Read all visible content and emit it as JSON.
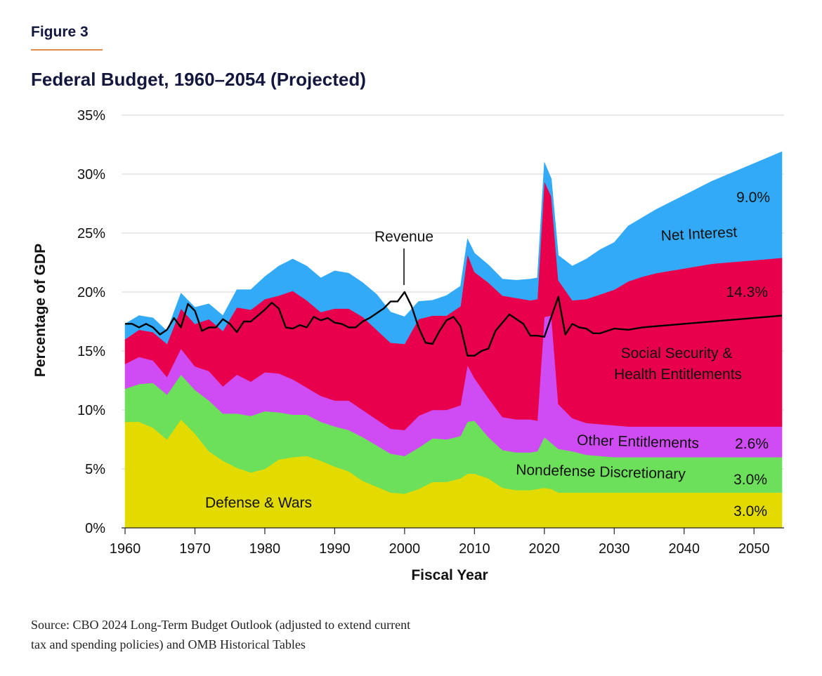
{
  "figure_label": "Figure 3",
  "title": "Federal Budget, 1960–2054 (Projected)",
  "source_line1": "Source: CBO 2024 Long-Term Budget Outlook (adjusted to extend current",
  "source_line2": "tax and spending policies) and OMB Historical Tables",
  "colors": {
    "defense": "#e3da00",
    "nondefense": "#6ce05a",
    "other_entitlements": "#cf4cf5",
    "social_security_health": "#e8004c",
    "net_interest": "#33aaf8",
    "revenue": "#000000",
    "accent_rule": "#e08a4a",
    "title": "#13173d"
  },
  "chart_data": {
    "type": "area",
    "stacked": true,
    "xlabel": "Fiscal Year",
    "ylabel": "Percentage of GDP",
    "xlim": [
      1960,
      2054
    ],
    "ylim": [
      0,
      35
    ],
    "x_ticks": [
      1960,
      1970,
      1980,
      1990,
      2000,
      2010,
      2020,
      2030,
      2040,
      2050
    ],
    "y_ticks": [
      0,
      5,
      10,
      15,
      20,
      25,
      30,
      35
    ],
    "y_tick_labels": [
      "0%",
      "5%",
      "10%",
      "15%",
      "20%",
      "25%",
      "30%",
      "35%"
    ],
    "grid": "horizontal",
    "years": [
      1960,
      1962,
      1964,
      1966,
      1968,
      1970,
      1972,
      1974,
      1976,
      1978,
      1980,
      1982,
      1984,
      1986,
      1988,
      1990,
      1992,
      1994,
      1996,
      1998,
      2000,
      2002,
      2004,
      2006,
      2008,
      2009,
      2010,
      2012,
      2014,
      2016,
      2018,
      2019,
      2020,
      2021,
      2022,
      2024,
      2026,
      2028,
      2030,
      2032,
      2034,
      2036,
      2038,
      2040,
      2042,
      2044,
      2046,
      2048,
      2050,
      2052,
      2054
    ],
    "series": [
      {
        "name": "Defense & Wars",
        "color_key": "defense",
        "values": [
          9.0,
          9.0,
          8.5,
          7.5,
          9.2,
          8.0,
          6.5,
          5.7,
          5.1,
          4.7,
          5.0,
          5.8,
          6.0,
          6.1,
          5.7,
          5.2,
          4.8,
          4.0,
          3.5,
          3.0,
          2.9,
          3.3,
          3.9,
          3.9,
          4.2,
          4.6,
          4.6,
          4.2,
          3.4,
          3.2,
          3.2,
          3.3,
          3.4,
          3.3,
          3.0,
          3.0,
          3.0,
          3.0,
          3.0,
          3.0,
          3.0,
          3.0,
          3.0,
          3.0,
          3.0,
          3.0,
          3.0,
          3.0,
          3.0,
          3.0,
          3.0
        ]
      },
      {
        "name": "Nondefense Discretionary",
        "color_key": "nondefense",
        "values": [
          2.8,
          3.2,
          3.8,
          3.8,
          3.8,
          3.7,
          4.3,
          4.0,
          4.6,
          4.8,
          4.9,
          4.0,
          3.6,
          3.5,
          3.3,
          3.4,
          3.5,
          3.7,
          3.5,
          3.3,
          3.2,
          3.5,
          3.7,
          3.6,
          3.6,
          4.4,
          4.5,
          3.5,
          3.2,
          3.2,
          3.2,
          3.2,
          4.3,
          3.9,
          3.7,
          3.5,
          3.2,
          3.1,
          3.0,
          3.0,
          3.0,
          3.0,
          3.0,
          3.0,
          3.0,
          3.0,
          3.0,
          3.0,
          3.0,
          3.0,
          3.0
        ]
      },
      {
        "name": "Other Entitlements",
        "color_key": "other_entitlements",
        "values": [
          2.1,
          2.3,
          1.9,
          1.5,
          2.2,
          2.0,
          2.5,
          2.3,
          3.3,
          2.9,
          3.3,
          3.3,
          3.0,
          2.3,
          2.2,
          2.2,
          2.5,
          2.3,
          2.2,
          2.1,
          2.2,
          2.7,
          2.4,
          2.5,
          2.6,
          4.8,
          3.6,
          3.3,
          2.8,
          2.8,
          2.8,
          2.6,
          10.2,
          10.8,
          3.8,
          2.8,
          2.7,
          2.7,
          2.7,
          2.6,
          2.6,
          2.6,
          2.6,
          2.6,
          2.6,
          2.6,
          2.6,
          2.6,
          2.6,
          2.6,
          2.6
        ]
      },
      {
        "name": "Social Security & Health Entitlements",
        "color_key": "social_security_health",
        "values": [
          2.1,
          2.3,
          2.4,
          2.8,
          3.4,
          3.6,
          4.4,
          4.7,
          5.7,
          6.1,
          6.2,
          6.6,
          7.5,
          7.4,
          7.1,
          7.8,
          7.8,
          7.9,
          7.6,
          7.3,
          7.3,
          8.2,
          8.0,
          8.0,
          8.4,
          9.4,
          9.0,
          9.8,
          10.3,
          10.3,
          10.1,
          10.3,
          11.5,
          10.1,
          10.5,
          10.0,
          10.5,
          11.0,
          11.5,
          12.3,
          12.7,
          13.0,
          13.2,
          13.4,
          13.6,
          13.8,
          13.9,
          14.0,
          14.1,
          14.2,
          14.3
        ]
      },
      {
        "name": "Net Interest",
        "color_key": "net_interest",
        "values": [
          1.3,
          1.2,
          1.2,
          1.1,
          1.3,
          1.4,
          1.3,
          1.3,
          1.5,
          1.7,
          1.9,
          2.5,
          2.7,
          2.9,
          2.9,
          3.2,
          3.0,
          2.9,
          3.0,
          2.6,
          2.3,
          1.5,
          1.3,
          1.7,
          1.7,
          1.3,
          1.6,
          1.5,
          1.4,
          1.5,
          1.8,
          1.8,
          1.6,
          1.5,
          2.1,
          2.9,
          3.4,
          3.8,
          4.0,
          4.7,
          5.0,
          5.4,
          5.8,
          6.2,
          6.6,
          7.0,
          7.4,
          7.8,
          8.2,
          8.6,
          9.0
        ]
      }
    ],
    "revenue_line": {
      "name": "Revenue",
      "years": [
        1960,
        1961,
        1962,
        1963,
        1964,
        1965,
        1966,
        1967,
        1968,
        1969,
        1970,
        1971,
        1972,
        1973,
        1974,
        1975,
        1976,
        1977,
        1978,
        1979,
        1980,
        1981,
        1982,
        1983,
        1984,
        1985,
        1986,
        1987,
        1988,
        1989,
        1990,
        1991,
        1992,
        1993,
        1994,
        1995,
        1996,
        1997,
        1998,
        1999,
        2000,
        2001,
        2002,
        2003,
        2004,
        2005,
        2006,
        2007,
        2008,
        2009,
        2010,
        2011,
        2012,
        2013,
        2014,
        2015,
        2016,
        2017,
        2018,
        2019,
        2020,
        2021,
        2022,
        2023,
        2024,
        2025,
        2026,
        2027,
        2028,
        2030,
        2032,
        2034,
        2036,
        2038,
        2040,
        2042,
        2044,
        2046,
        2048,
        2050,
        2052,
        2054
      ],
      "values": [
        17.3,
        17.3,
        17.0,
        17.3,
        17.0,
        16.4,
        16.8,
        17.8,
        17.0,
        19.0,
        18.4,
        16.7,
        17.0,
        17.0,
        17.7,
        17.3,
        16.6,
        17.5,
        17.5,
        18.0,
        18.5,
        19.1,
        18.6,
        17.0,
        16.9,
        17.2,
        17.0,
        17.9,
        17.6,
        17.8,
        17.4,
        17.3,
        17.0,
        17.0,
        17.5,
        17.8,
        18.2,
        18.6,
        19.2,
        19.2,
        20.0,
        18.8,
        17.0,
        15.7,
        15.6,
        16.7,
        17.6,
        17.9,
        17.1,
        14.6,
        14.6,
        15.0,
        15.2,
        16.7,
        17.4,
        18.1,
        17.7,
        17.3,
        16.3,
        16.3,
        16.2,
        17.9,
        19.6,
        16.4,
        17.3,
        17.0,
        16.9,
        16.5,
        16.5,
        16.9,
        16.8,
        17.0,
        17.1,
        17.2,
        17.3,
        17.4,
        17.5,
        17.6,
        17.7,
        17.8,
        17.9,
        18.0
      ]
    },
    "annotations": {
      "revenue_label": "Revenue",
      "net_interest_label": "Net Interest",
      "net_interest_value": "9.0%",
      "ssh_label_line1": "Social Security &",
      "ssh_label_line2": "Health Entitlements",
      "ssh_value": "14.3%",
      "other_ent_label": "Other Entitlements",
      "other_ent_value": "2.6%",
      "nondefense_label": "Nondefense Discretionary",
      "nondefense_value": "3.0%",
      "defense_label": "Defense & Wars",
      "defense_value": "3.0%"
    }
  }
}
